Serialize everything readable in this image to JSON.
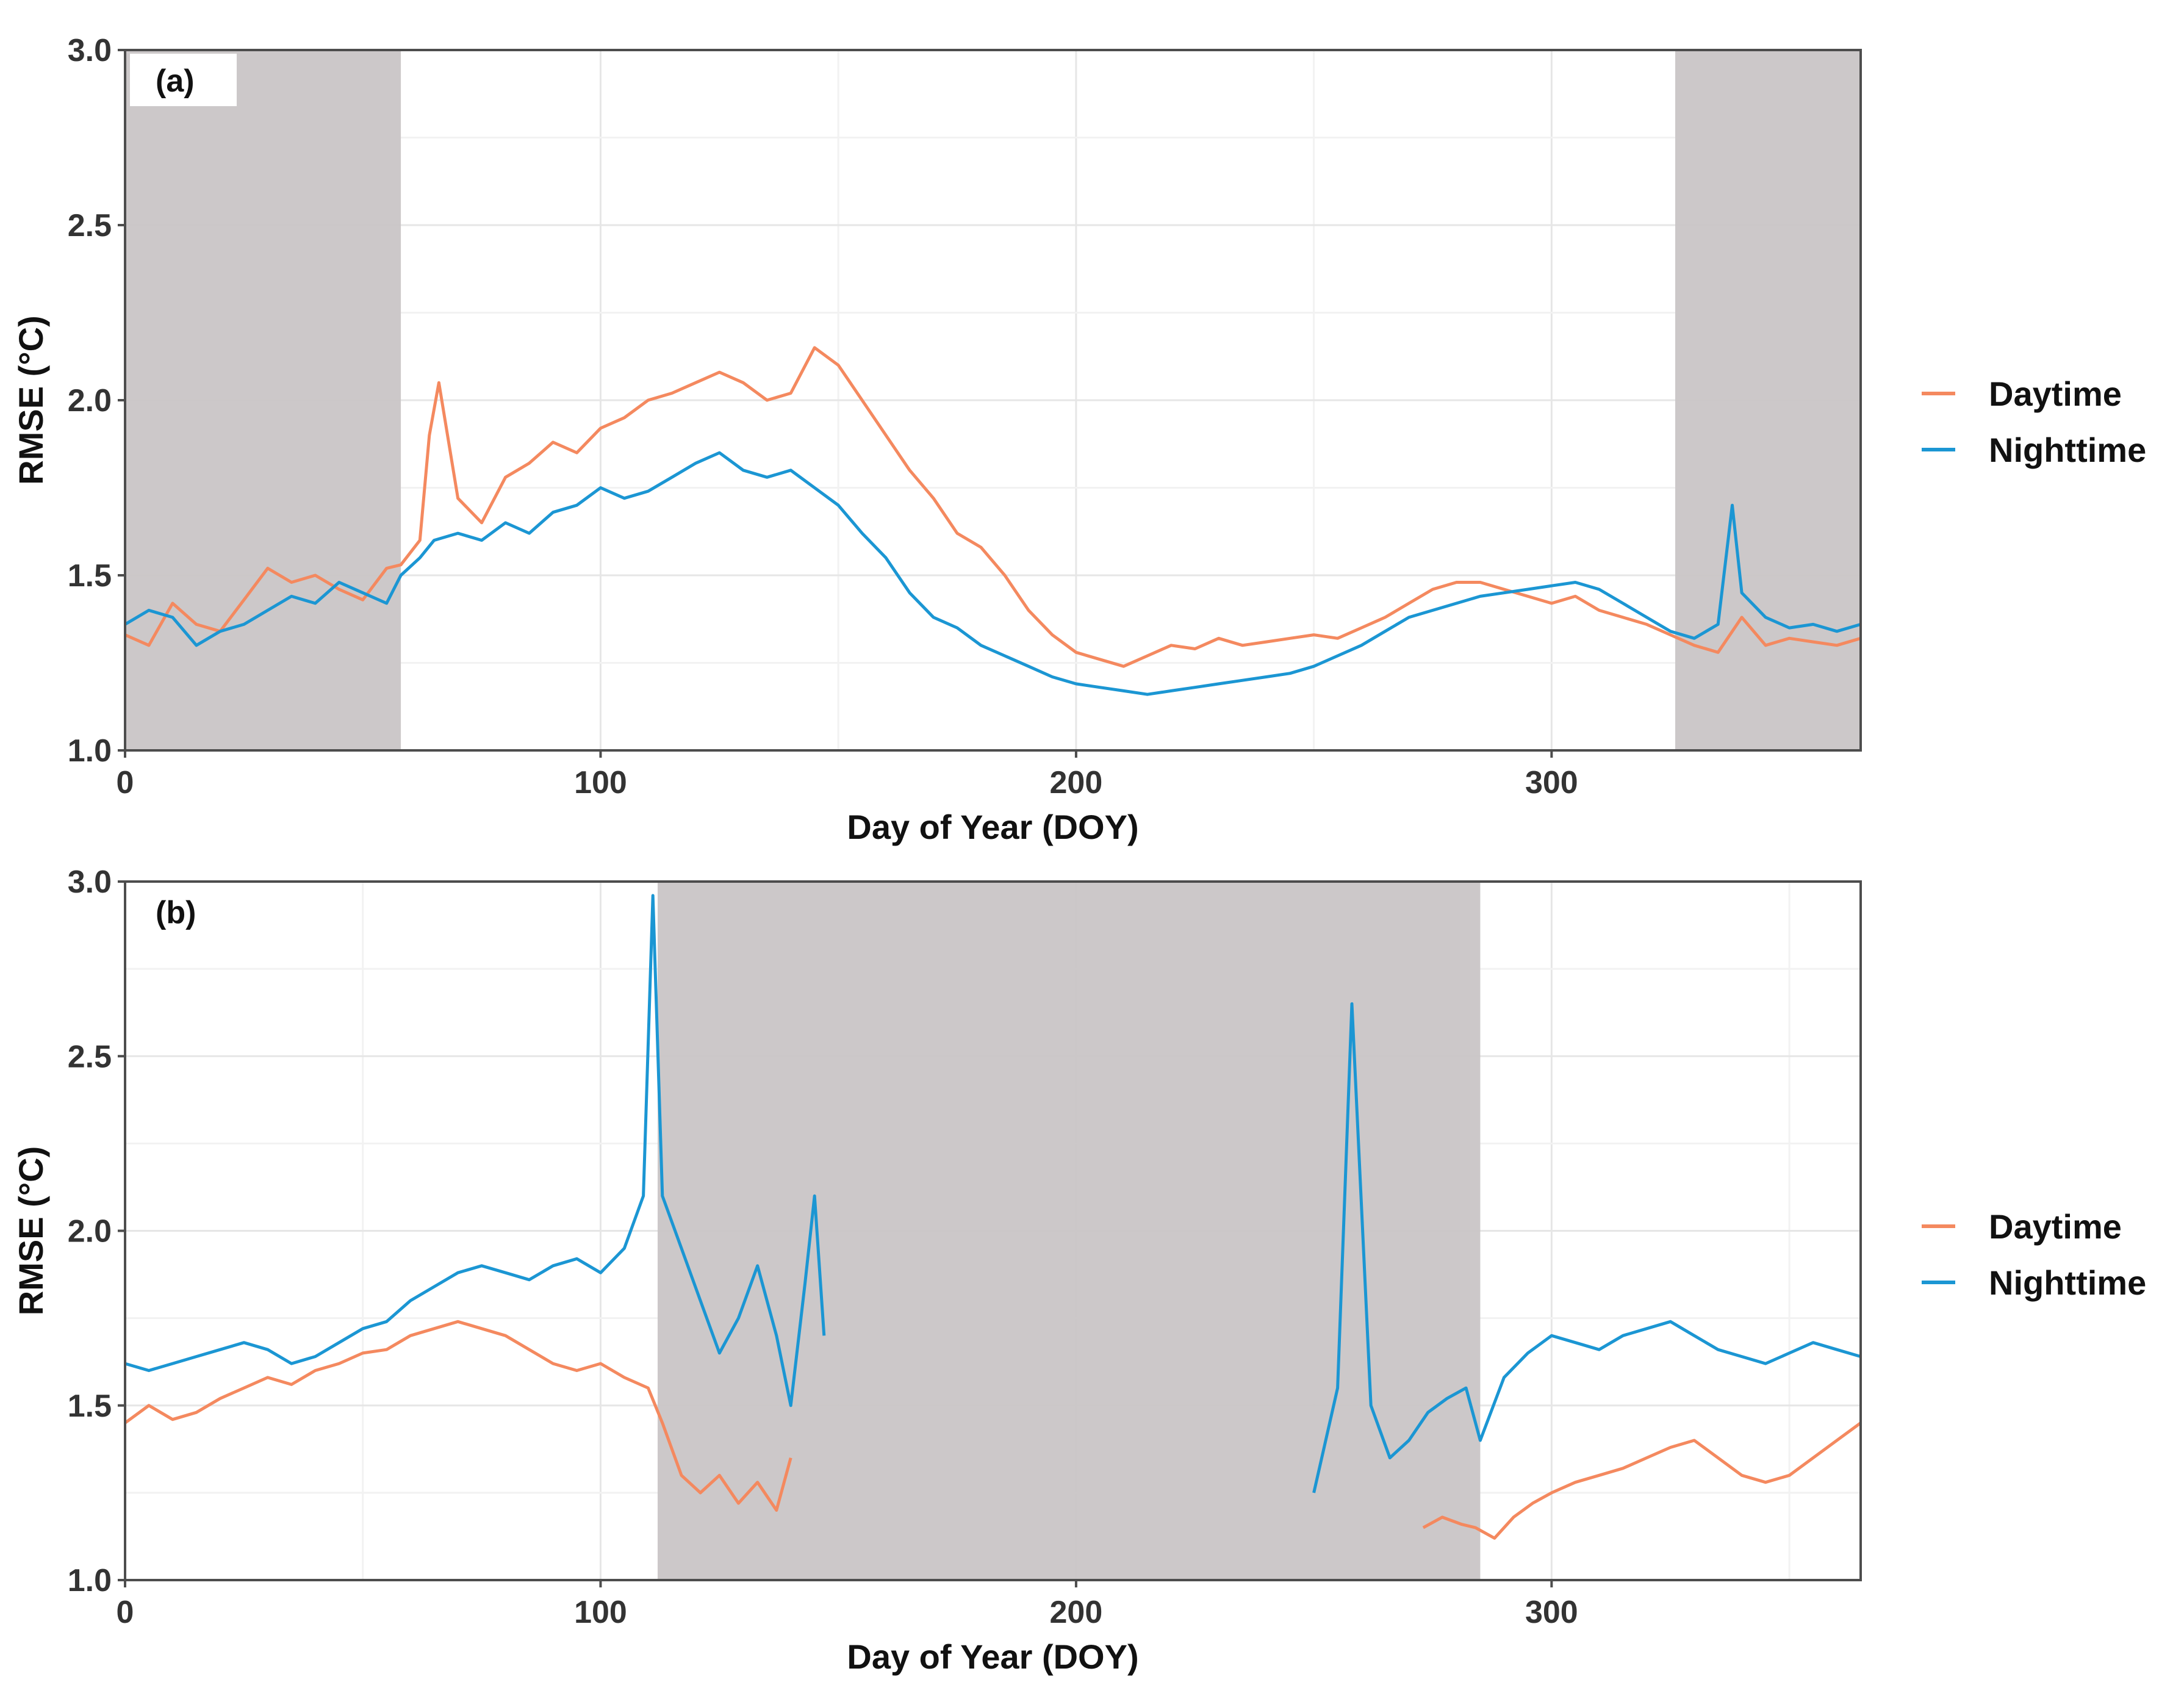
{
  "chart_data": [
    {
      "type": "line",
      "panel_label": "(a)",
      "xlabel": "Day of Year (DOY)",
      "ylabel": "RMSE (°C)",
      "xlim": [
        0,
        365
      ],
      "ylim": [
        1.0,
        3.0
      ],
      "x_ticks": [
        "0",
        "100",
        "200",
        "300"
      ],
      "y_ticks": [
        "1.0",
        "1.5",
        "2.0",
        "2.5",
        "3.0"
      ],
      "grid": true,
      "legend_position": "right",
      "shaded_ranges": [
        [
          0,
          58
        ],
        [
          326,
          365
        ]
      ],
      "series": [
        {
          "name": "Daytime",
          "color": "#F4895F",
          "points": [
            [
              0,
              1.33
            ],
            [
              5,
              1.3
            ],
            [
              10,
              1.42
            ],
            [
              15,
              1.36
            ],
            [
              20,
              1.34
            ],
            [
              25,
              1.43
            ],
            [
              30,
              1.52
            ],
            [
              35,
              1.48
            ],
            [
              40,
              1.5
            ],
            [
              45,
              1.46
            ],
            [
              50,
              1.43
            ],
            [
              55,
              1.52
            ],
            [
              58,
              1.53
            ],
            [
              62,
              1.6
            ],
            [
              64,
              1.9
            ],
            [
              66,
              2.05
            ],
            [
              70,
              1.72
            ],
            [
              75,
              1.65
            ],
            [
              80,
              1.78
            ],
            [
              85,
              1.82
            ],
            [
              90,
              1.88
            ],
            [
              95,
              1.85
            ],
            [
              100,
              1.92
            ],
            [
              105,
              1.95
            ],
            [
              110,
              2.0
            ],
            [
              115,
              2.02
            ],
            [
              120,
              2.05
            ],
            [
              125,
              2.08
            ],
            [
              130,
              2.05
            ],
            [
              135,
              2.0
            ],
            [
              140,
              2.02
            ],
            [
              145,
              2.15
            ],
            [
              150,
              2.1
            ],
            [
              155,
              2.0
            ],
            [
              160,
              1.9
            ],
            [
              165,
              1.8
            ],
            [
              170,
              1.72
            ],
            [
              175,
              1.62
            ],
            [
              180,
              1.58
            ],
            [
              185,
              1.5
            ],
            [
              190,
              1.4
            ],
            [
              195,
              1.33
            ],
            [
              200,
              1.28
            ],
            [
              205,
              1.26
            ],
            [
              210,
              1.24
            ],
            [
              215,
              1.27
            ],
            [
              220,
              1.3
            ],
            [
              225,
              1.29
            ],
            [
              230,
              1.32
            ],
            [
              235,
              1.3
            ],
            [
              240,
              1.31
            ],
            [
              245,
              1.32
            ],
            [
              250,
              1.33
            ],
            [
              255,
              1.32
            ],
            [
              260,
              1.35
            ],
            [
              265,
              1.38
            ],
            [
              270,
              1.42
            ],
            [
              275,
              1.46
            ],
            [
              280,
              1.48
            ],
            [
              285,
              1.48
            ],
            [
              290,
              1.46
            ],
            [
              295,
              1.44
            ],
            [
              300,
              1.42
            ],
            [
              305,
              1.44
            ],
            [
              310,
              1.4
            ],
            [
              315,
              1.38
            ],
            [
              320,
              1.36
            ],
            [
              325,
              1.33
            ],
            [
              330,
              1.3
            ],
            [
              335,
              1.28
            ],
            [
              340,
              1.38
            ],
            [
              345,
              1.3
            ],
            [
              350,
              1.32
            ],
            [
              355,
              1.31
            ],
            [
              360,
              1.3
            ],
            [
              365,
              1.32
            ]
          ]
        },
        {
          "name": "Nighttime",
          "color": "#1B96D3",
          "points": [
            [
              0,
              1.36
            ],
            [
              5,
              1.4
            ],
            [
              10,
              1.38
            ],
            [
              15,
              1.3
            ],
            [
              20,
              1.34
            ],
            [
              25,
              1.36
            ],
            [
              30,
              1.4
            ],
            [
              35,
              1.44
            ],
            [
              40,
              1.42
            ],
            [
              45,
              1.48
            ],
            [
              50,
              1.45
            ],
            [
              55,
              1.42
            ],
            [
              58,
              1.5
            ],
            [
              62,
              1.55
            ],
            [
              65,
              1.6
            ],
            [
              70,
              1.62
            ],
            [
              75,
              1.6
            ],
            [
              80,
              1.65
            ],
            [
              85,
              1.62
            ],
            [
              90,
              1.68
            ],
            [
              95,
              1.7
            ],
            [
              100,
              1.75
            ],
            [
              105,
              1.72
            ],
            [
              110,
              1.74
            ],
            [
              115,
              1.78
            ],
            [
              120,
              1.82
            ],
            [
              125,
              1.85
            ],
            [
              130,
              1.8
            ],
            [
              135,
              1.78
            ],
            [
              140,
              1.8
            ],
            [
              145,
              1.75
            ],
            [
              150,
              1.7
            ],
            [
              155,
              1.62
            ],
            [
              160,
              1.55
            ],
            [
              165,
              1.45
            ],
            [
              170,
              1.38
            ],
            [
              175,
              1.35
            ],
            [
              180,
              1.3
            ],
            [
              185,
              1.27
            ],
            [
              190,
              1.24
            ],
            [
              195,
              1.21
            ],
            [
              200,
              1.19
            ],
            [
              205,
              1.18
            ],
            [
              210,
              1.17
            ],
            [
              215,
              1.16
            ],
            [
              220,
              1.17
            ],
            [
              225,
              1.18
            ],
            [
              230,
              1.19
            ],
            [
              235,
              1.2
            ],
            [
              240,
              1.21
            ],
            [
              245,
              1.22
            ],
            [
              250,
              1.24
            ],
            [
              255,
              1.27
            ],
            [
              260,
              1.3
            ],
            [
              265,
              1.34
            ],
            [
              270,
              1.38
            ],
            [
              275,
              1.4
            ],
            [
              280,
              1.42
            ],
            [
              285,
              1.44
            ],
            [
              290,
              1.45
            ],
            [
              295,
              1.46
            ],
            [
              300,
              1.47
            ],
            [
              305,
              1.48
            ],
            [
              310,
              1.46
            ],
            [
              315,
              1.42
            ],
            [
              320,
              1.38
            ],
            [
              325,
              1.34
            ],
            [
              330,
              1.32
            ],
            [
              335,
              1.36
            ],
            [
              338,
              1.7
            ],
            [
              340,
              1.45
            ],
            [
              345,
              1.38
            ],
            [
              350,
              1.35
            ],
            [
              355,
              1.36
            ],
            [
              360,
              1.34
            ],
            [
              365,
              1.36
            ]
          ]
        }
      ]
    },
    {
      "type": "line",
      "panel_label": "(b)",
      "xlabel": "Day of Year (DOY)",
      "ylabel": "RMSE (°C)",
      "xlim": [
        0,
        365
      ],
      "ylim": [
        1.0,
        3.0
      ],
      "x_ticks": [
        "0",
        "100",
        "200",
        "300"
      ],
      "y_ticks": [
        "1.0",
        "1.5",
        "2.0",
        "2.5",
        "3.0"
      ],
      "grid": true,
      "legend_position": "right",
      "shaded_ranges": [
        [
          112,
          285
        ]
      ],
      "series": [
        {
          "name": "Daytime",
          "color": "#F4895F",
          "points": [
            [
              0,
              1.45
            ],
            [
              5,
              1.5
            ],
            [
              10,
              1.46
            ],
            [
              15,
              1.48
            ],
            [
              20,
              1.52
            ],
            [
              25,
              1.55
            ],
            [
              30,
              1.58
            ],
            [
              35,
              1.56
            ],
            [
              40,
              1.6
            ],
            [
              45,
              1.62
            ],
            [
              50,
              1.65
            ],
            [
              55,
              1.66
            ],
            [
              60,
              1.7
            ],
            [
              65,
              1.72
            ],
            [
              70,
              1.74
            ],
            [
              75,
              1.72
            ],
            [
              80,
              1.7
            ],
            [
              85,
              1.66
            ],
            [
              90,
              1.62
            ],
            [
              95,
              1.6
            ],
            [
              100,
              1.62
            ],
            [
              105,
              1.58
            ],
            [
              110,
              1.55
            ],
            [
              113,
              1.45
            ],
            [
              117,
              1.3
            ],
            [
              121,
              1.25
            ],
            [
              125,
              1.3
            ],
            [
              129,
              1.22
            ],
            [
              133,
              1.28
            ],
            [
              137,
              1.2
            ],
            [
              140,
              1.35
            ],
            [
              273,
              1.15
            ],
            [
              277,
              1.18
            ],
            [
              281,
              1.16
            ],
            [
              284,
              1.15
            ],
            [
              288,
              1.12
            ],
            [
              292,
              1.18
            ],
            [
              296,
              1.22
            ],
            [
              300,
              1.25
            ],
            [
              305,
              1.28
            ],
            [
              310,
              1.3
            ],
            [
              315,
              1.32
            ],
            [
              320,
              1.35
            ],
            [
              325,
              1.38
            ],
            [
              330,
              1.4
            ],
            [
              335,
              1.35
            ],
            [
              340,
              1.3
            ],
            [
              345,
              1.28
            ],
            [
              350,
              1.3
            ],
            [
              355,
              1.35
            ],
            [
              360,
              1.4
            ],
            [
              365,
              1.45
            ]
          ]
        },
        {
          "name": "Nighttime",
          "color": "#1B96D3",
          "points": [
            [
              0,
              1.62
            ],
            [
              5,
              1.6
            ],
            [
              10,
              1.62
            ],
            [
              15,
              1.64
            ],
            [
              20,
              1.66
            ],
            [
              25,
              1.68
            ],
            [
              30,
              1.66
            ],
            [
              35,
              1.62
            ],
            [
              40,
              1.64
            ],
            [
              45,
              1.68
            ],
            [
              50,
              1.72
            ],
            [
              55,
              1.74
            ],
            [
              60,
              1.8
            ],
            [
              65,
              1.84
            ],
            [
              70,
              1.88
            ],
            [
              75,
              1.9
            ],
            [
              80,
              1.88
            ],
            [
              85,
              1.86
            ],
            [
              90,
              1.9
            ],
            [
              95,
              1.92
            ],
            [
              100,
              1.88
            ],
            [
              105,
              1.95
            ],
            [
              109,
              2.1
            ],
            [
              111,
              2.96
            ],
            [
              113,
              2.1
            ],
            [
              117,
              1.95
            ],
            [
              121,
              1.8
            ],
            [
              125,
              1.65
            ],
            [
              129,
              1.75
            ],
            [
              133,
              1.9
            ],
            [
              137,
              1.7
            ],
            [
              140,
              1.5
            ],
            [
              143,
              1.85
            ],
            [
              145,
              2.1
            ],
            [
              147,
              1.7
            ],
            [
              250,
              1.25
            ],
            [
              255,
              1.55
            ],
            [
              258,
              2.65
            ],
            [
              262,
              1.5
            ],
            [
              266,
              1.35
            ],
            [
              270,
              1.4
            ],
            [
              274,
              1.48
            ],
            [
              278,
              1.52
            ],
            [
              282,
              1.55
            ],
            [
              285,
              1.4
            ],
            [
              290,
              1.58
            ],
            [
              295,
              1.65
            ],
            [
              300,
              1.7
            ],
            [
              305,
              1.68
            ],
            [
              310,
              1.66
            ],
            [
              315,
              1.7
            ],
            [
              320,
              1.72
            ],
            [
              325,
              1.74
            ],
            [
              330,
              1.7
            ],
            [
              335,
              1.66
            ],
            [
              340,
              1.64
            ],
            [
              345,
              1.62
            ],
            [
              350,
              1.65
            ],
            [
              355,
              1.68
            ],
            [
              360,
              1.66
            ],
            [
              365,
              1.64
            ]
          ]
        }
      ]
    }
  ]
}
